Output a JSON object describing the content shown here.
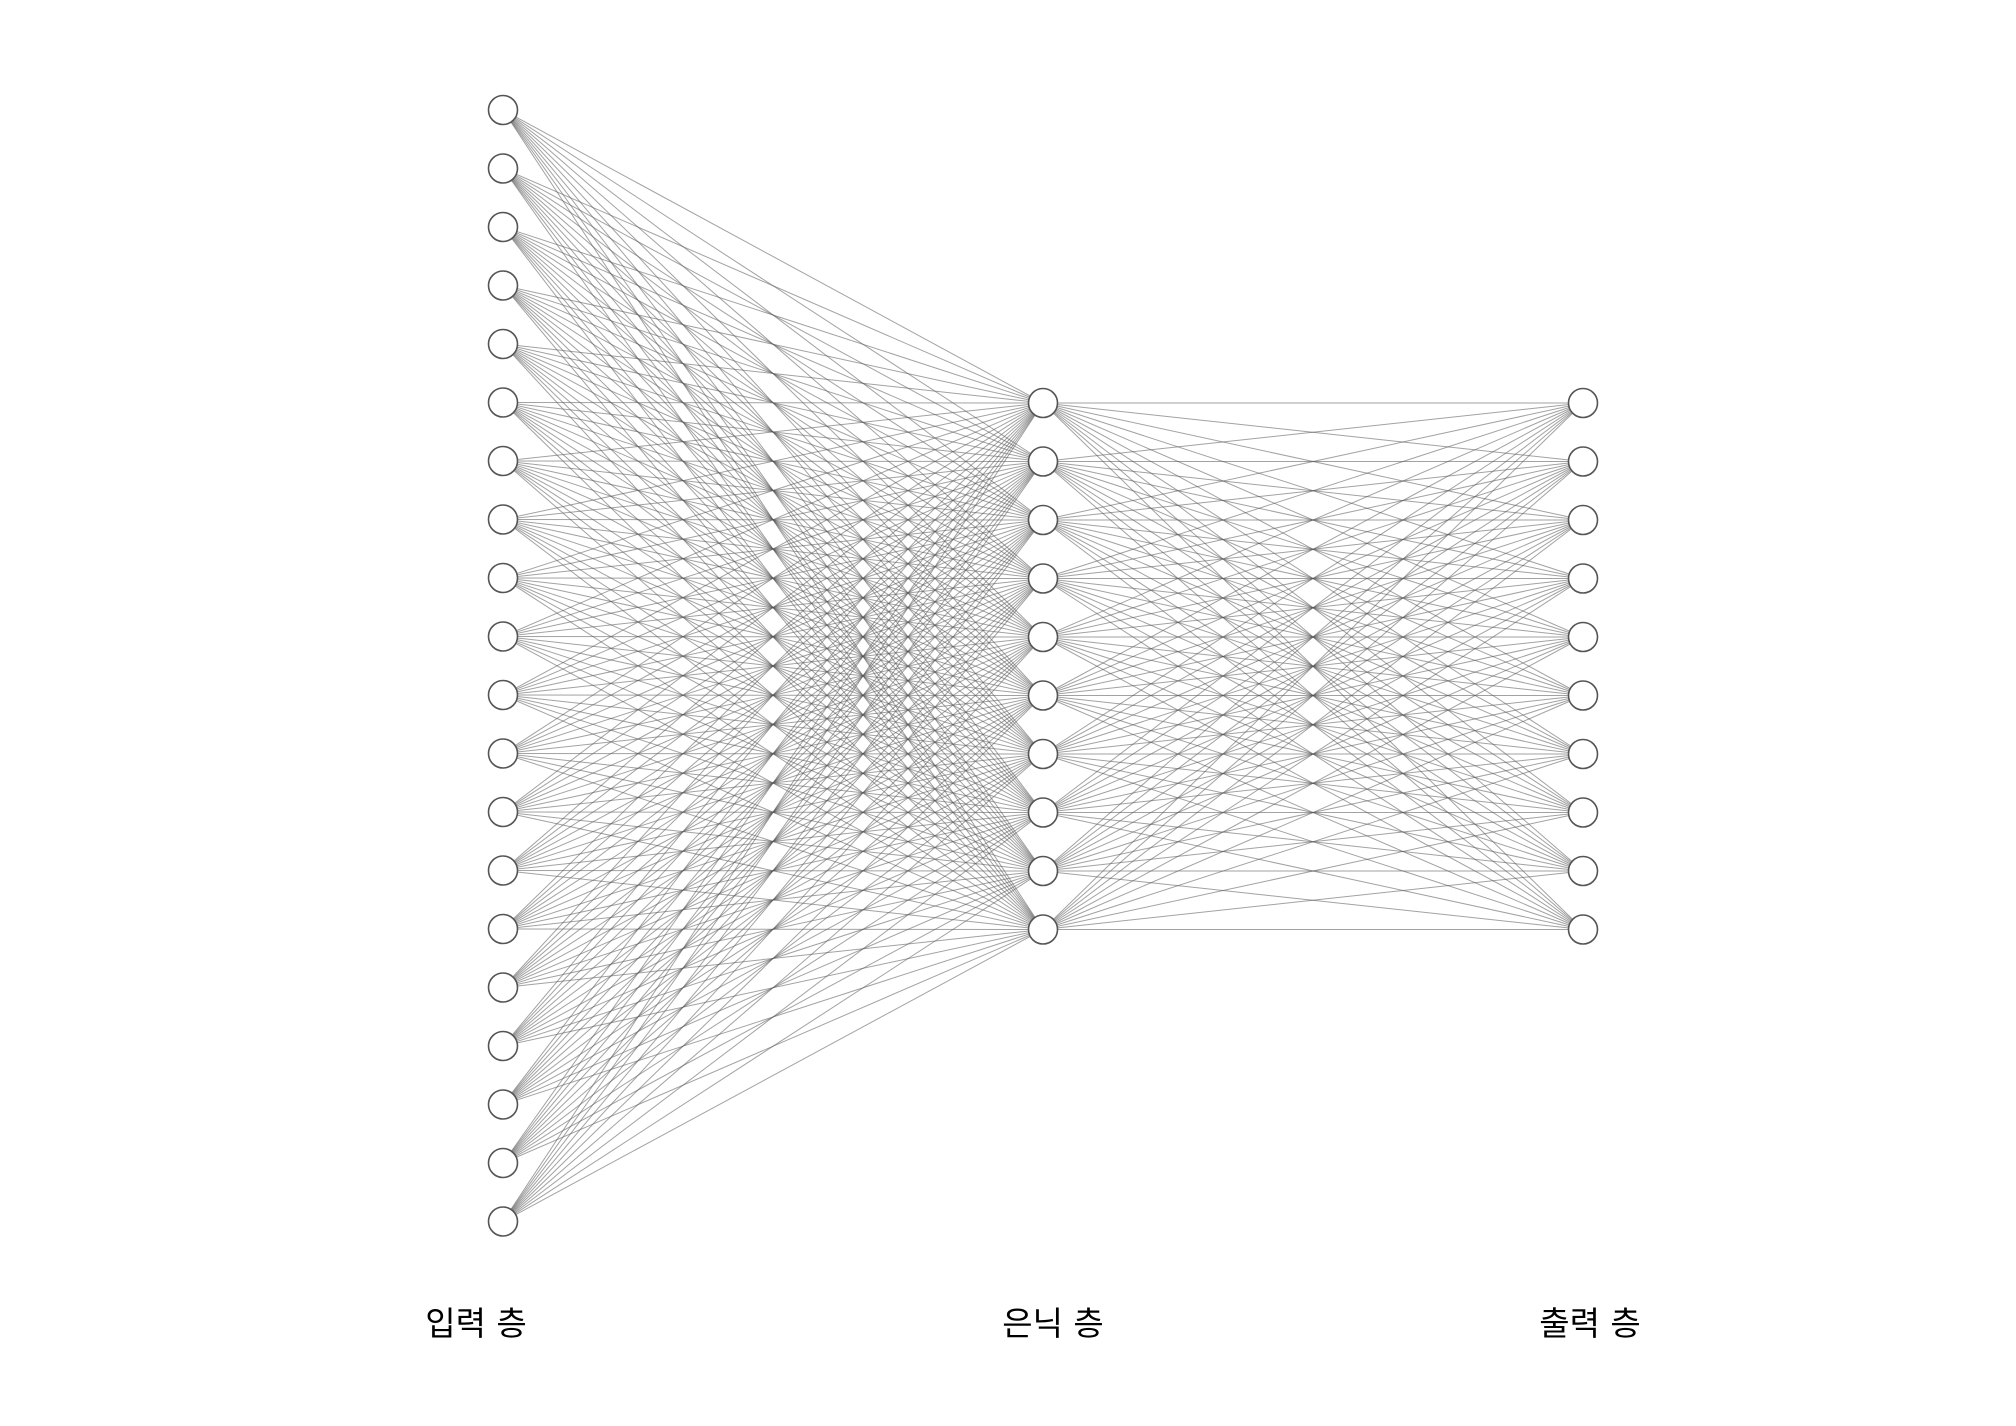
{
  "layers": [
    {
      "label": "입력 층",
      "neurons": 20
    },
    {
      "label": "은닉 층",
      "neurons": 10
    },
    {
      "label": "출력 층",
      "neurons": 10
    }
  ],
  "colors": {
    "edge": "#555555",
    "node_stroke": "#555555",
    "node_fill": "#ffffff",
    "label": "#000000"
  }
}
